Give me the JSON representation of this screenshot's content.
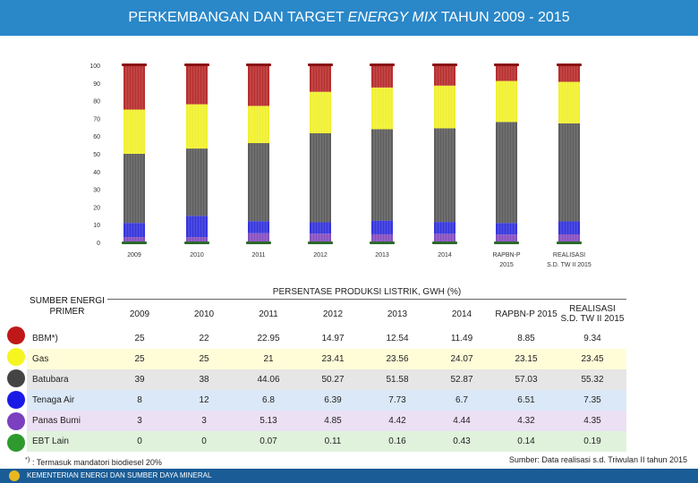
{
  "header": {
    "title_prefix": "PERKEMBANGAN DAN TARGET",
    "title_italic": "ENERGY MIX",
    "title_suffix": "TAHUN 2009 - 2015"
  },
  "chart_data": {
    "type": "bar",
    "stacked": true,
    "categories": [
      "2009",
      "2010",
      "2011",
      "2012",
      "2013",
      "2014",
      "RAPBN-P 2015",
      "REALISASI S.D. TW II 2015"
    ],
    "category_lines": [
      [
        "2009"
      ],
      [
        "2010"
      ],
      [
        "2011"
      ],
      [
        "2012"
      ],
      [
        "2013"
      ],
      [
        "2014"
      ],
      [
        "RAPBN-P",
        "2015"
      ],
      [
        "REALISASI",
        "S.D. TW II 2015"
      ]
    ],
    "ylim": [
      0,
      100
    ],
    "yticks": [
      0,
      10,
      20,
      30,
      40,
      50,
      60,
      70,
      80,
      90,
      100
    ],
    "series": [
      {
        "name": "EBT Lain",
        "color": "#2d8a2d",
        "values": [
          0,
          0,
          0.07,
          0.11,
          0.16,
          0.43,
          0.14,
          0.19
        ]
      },
      {
        "name": "Panas Bumi",
        "color": "#7a3cb8",
        "values": [
          3,
          3,
          5.13,
          4.85,
          4.42,
          4.44,
          4.32,
          4.35
        ]
      },
      {
        "name": "Tenaga Air",
        "color": "#1f1fd8",
        "values": [
          8,
          12,
          6.8,
          6.39,
          7.73,
          6.7,
          6.51,
          7.35
        ]
      },
      {
        "name": "Batubara",
        "color": "#4d4d4d",
        "values": [
          39,
          38,
          44.06,
          50.27,
          51.58,
          52.87,
          57.03,
          55.32
        ]
      },
      {
        "name": "Gas",
        "color": "#f0f018",
        "values": [
          25,
          25,
          21,
          23.41,
          23.56,
          24.07,
          23.15,
          23.45
        ]
      },
      {
        "name": "BBM*)",
        "color": "#b01818",
        "values": [
          25,
          22,
          22.95,
          14.97,
          12.54,
          11.49,
          8.85,
          9.34
        ]
      }
    ]
  },
  "table": {
    "source_header": "SUMBER ENERGI PRIMER",
    "span_header": "PERSENTASE PRODUKSI LISTRIK, GWH (%)",
    "year_headers": [
      "2009",
      "2010",
      "2011",
      "2012",
      "2013",
      "2014",
      "RAPBN-P 2015"
    ],
    "last_header_line1": "REALISASI",
    "last_header_line2": "S.D. TW II 2015",
    "rows": [
      {
        "label": "BBM*)",
        "color": "#c01818",
        "bg": "#ffffff",
        "values": [
          "25",
          "22",
          "22.95",
          "14.97",
          "12.54",
          "11.49",
          "8.85",
          "9.34"
        ]
      },
      {
        "label": "Gas",
        "color": "#f5f520",
        "bg": "#fffdd8",
        "values": [
          "25",
          "25",
          "21",
          "23.41",
          "23.56",
          "24.07",
          "23.15",
          "23.45"
        ]
      },
      {
        "label": "Batubara",
        "color": "#444444",
        "bg": "#e6e6e6",
        "values": [
          "39",
          "38",
          "44.06",
          "50.27",
          "51.58",
          "52.87",
          "57.03",
          "55.32"
        ]
      },
      {
        "label": "Tenaga Air",
        "color": "#1a1ae6",
        "bg": "#dbe8f8",
        "values": [
          "8",
          "12",
          "6.8",
          "6.39",
          "7.73",
          "6.7",
          "6.51",
          "7.35"
        ]
      },
      {
        "label": "Panas Bumi",
        "color": "#7b3fc0",
        "bg": "#ece0f4",
        "values": [
          "3",
          "3",
          "5.13",
          "4.85",
          "4.42",
          "4.44",
          "4.32",
          "4.35"
        ]
      },
      {
        "label": "EBT Lain",
        "color": "#2e9a2e",
        "bg": "#e0f2dc",
        "values": [
          "0",
          "0",
          "0.07",
          "0.11",
          "0.16",
          "0.43",
          "0.14",
          "0.19"
        ]
      }
    ]
  },
  "footnote_mark": "*)",
  "footnote": ": Termasuk mandatori biodiesel 20%",
  "source": "Sumber: Data realisasi s.d. Triwulan II tahun 2015",
  "ministry": "KEMENTERIAN ENERGI DAN SUMBER DAYA MINERAL"
}
